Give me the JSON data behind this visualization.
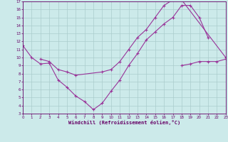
{
  "xlabel": "Windchill (Refroidissement éolien,°C)",
  "background_color": "#cceaea",
  "line_color": "#993399",
  "grid_color": "#aacccc",
  "xlim": [
    0,
    23
  ],
  "ylim": [
    3,
    17
  ],
  "xticks": [
    0,
    1,
    2,
    3,
    4,
    5,
    6,
    7,
    8,
    9,
    10,
    11,
    12,
    13,
    14,
    15,
    16,
    17,
    18,
    19,
    20,
    21,
    22,
    23
  ],
  "yticks": [
    3,
    4,
    5,
    6,
    7,
    8,
    9,
    10,
    11,
    12,
    13,
    14,
    15,
    16,
    17
  ],
  "line1_x": [
    0,
    1,
    2,
    3,
    4,
    5,
    6,
    7,
    8,
    9,
    10,
    11,
    12,
    13,
    14,
    15,
    16,
    17,
    18,
    19,
    20,
    21
  ],
  "line1_y": [
    11.5,
    10.0,
    9.2,
    9.3,
    7.2,
    6.3,
    5.2,
    4.5,
    3.5,
    4.3,
    5.8,
    7.2,
    9.0,
    10.5,
    12.2,
    13.2,
    14.2,
    15.0,
    16.5,
    16.5,
    15.0,
    12.5
  ],
  "line2_x": [
    2,
    3,
    4,
    5,
    6,
    9,
    10,
    11,
    12,
    13,
    14,
    15,
    16,
    17,
    18,
    23
  ],
  "line2_y": [
    9.8,
    9.5,
    8.5,
    8.2,
    7.8,
    8.2,
    8.5,
    9.5,
    11.0,
    12.5,
    13.5,
    15.0,
    16.5,
    17.2,
    17.2,
    10.0
  ],
  "line3_x": [
    18,
    19,
    20,
    21,
    22,
    23
  ],
  "line3_y": [
    9.0,
    9.2,
    9.5,
    9.5,
    9.5,
    9.8
  ]
}
